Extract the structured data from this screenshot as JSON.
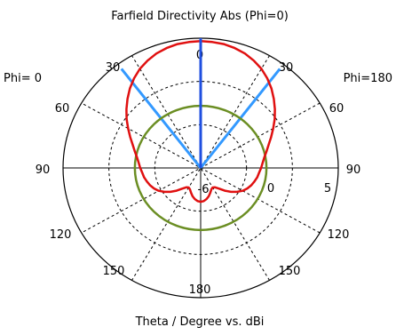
{
  "chart_data": {
    "type": "polar",
    "title": "Farfield Directivity Abs (Phi=0)",
    "xlabel": "Theta / Degree vs. dBi",
    "side_labels": {
      "left": "Phi=  0",
      "right": "Phi=180"
    },
    "angle_labels": [
      "0",
      "30",
      "60",
      "90",
      "120",
      "150",
      "180",
      "150",
      "120",
      "90",
      "60",
      "30"
    ],
    "radial_labels": [
      "-6",
      "0",
      "5"
    ],
    "radial_range_dbi": [
      -15,
      8
    ],
    "grid": true,
    "series": [
      {
        "color": "#e01010",
        "theta_deg": [
          0,
          5,
          10,
          15,
          20,
          25,
          30,
          35,
          40,
          45,
          50,
          55,
          60,
          65,
          70,
          75,
          80,
          85,
          90,
          95,
          100,
          105,
          110,
          115,
          120,
          125,
          130,
          135,
          140,
          145,
          150,
          155,
          160,
          165,
          170,
          175,
          180
        ],
        "r_dbi": [
          7.5,
          7.4,
          7.3,
          7.0,
          6.6,
          6.0,
          5.3,
          4.4,
          3.4,
          2.3,
          1.2,
          0.1,
          -1.0,
          -2.0,
          -2.9,
          -3.6,
          -4.2,
          -4.6,
          -4.9,
          -5.2,
          -5.4,
          -5.7,
          -6.0,
          -6.4,
          -6.9,
          -7.6,
          -8.4,
          -9.3,
          -10.2,
          -10.8,
          -11.0,
          -10.8,
          -10.3,
          -9.8,
          -9.4,
          -9.1,
          -9.0
        ]
      },
      {
        "color": "#6b8e23",
        "theta_deg": [
          0,
          180
        ],
        "r_dbi": [
          -4.0,
          -4.0
        ]
      },
      {
        "color": "#1f4fe0",
        "theta_deg": [
          0,
          0
        ],
        "r_dbi": [
          -15,
          8
        ]
      },
      {
        "color": "#3399ff",
        "theta_deg": [
          -37,
          37
        ],
        "r_dbi": [
          7.0,
          7.0
        ]
      }
    ]
  }
}
